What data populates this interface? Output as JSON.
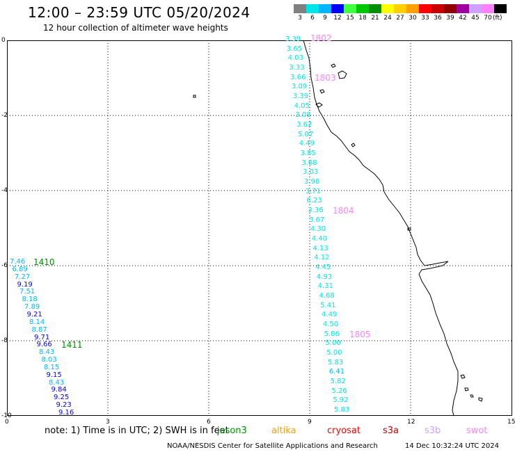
{
  "title": "12:00 – 23:59 UTC 05/20/2024",
  "subtitle": "12 hour collection of altimeter wave heights",
  "legend": {
    "unit": "(ft)",
    "bins": [
      {
        "label": "3",
        "color": "#808080"
      },
      {
        "label": "6",
        "color": "#00e5e5"
      },
      {
        "label": "9",
        "color": "#00b7ff"
      },
      {
        "label": "12",
        "color": "#0000ff"
      },
      {
        "label": "15",
        "color": "#40ff40"
      },
      {
        "label": "18",
        "color": "#00c800"
      },
      {
        "label": "21",
        "color": "#009000"
      },
      {
        "label": "24",
        "color": "#ffff00"
      },
      {
        "label": "27",
        "color": "#ffd000"
      },
      {
        "label": "30",
        "color": "#ffa000"
      },
      {
        "label": "33",
        "color": "#ff0000"
      },
      {
        "label": "36",
        "color": "#c80000"
      },
      {
        "label": "39",
        "color": "#900000"
      },
      {
        "label": "42",
        "color": "#a000a0"
      },
      {
        "label": "45",
        "color": "#d0a0ff"
      },
      {
        "label": "70",
        "color": "#ff80ff"
      },
      {
        "label": "",
        "color": "#000000"
      }
    ]
  },
  "axes": {
    "x_ticks": [
      "0",
      "3",
      "6",
      "9",
      "12",
      "15"
    ],
    "y_ticks": [
      "0",
      "-2",
      "-4",
      "-6",
      "-8",
      "-10"
    ]
  },
  "tracks": [
    {
      "label": "1410",
      "label_color": "#009000",
      "time_labels": [
        {
          "text": "1410",
          "color": "#009000"
        },
        {
          "text": "1411",
          "color": "#009000"
        }
      ],
      "values": [
        {
          "v": "7.46",
          "c": "#00b7ff"
        },
        {
          "v": "6.89",
          "c": "#00b7ff"
        },
        {
          "v": "7.27",
          "c": "#00b7ff"
        },
        {
          "v": "9.19",
          "c": "#0000ff"
        },
        {
          "v": "7.51",
          "c": "#00b7ff"
        },
        {
          "v": "8.18",
          "c": "#00b7ff"
        },
        {
          "v": "7.89",
          "c": "#00b7ff"
        },
        {
          "v": "9.21",
          "c": "#0000ff"
        },
        {
          "v": "8.14",
          "c": "#00b7ff"
        },
        {
          "v": "8.87",
          "c": "#00b7ff"
        },
        {
          "v": "9.71",
          "c": "#0000ff"
        },
        {
          "v": "9.66",
          "c": "#0000ff"
        },
        {
          "v": "8.43",
          "c": "#00b7ff"
        },
        {
          "v": "8.03",
          "c": "#00b7ff"
        },
        {
          "v": "8.15",
          "c": "#00b7ff"
        },
        {
          "v": "9.15",
          "c": "#0000ff"
        },
        {
          "v": "8.43",
          "c": "#00b7ff"
        },
        {
          "v": "9.84",
          "c": "#0000ff"
        },
        {
          "v": "9.25",
          "c": "#0000ff"
        },
        {
          "v": "9.23",
          "c": "#0000ff"
        },
        {
          "v": "9.16",
          "c": "#0000ff"
        }
      ]
    },
    {
      "time_labels": [
        {
          "text": "1802",
          "color": "#ff80ff"
        },
        {
          "text": "1803",
          "color": "#ff80ff"
        },
        {
          "text": "1804",
          "color": "#ff80ff"
        },
        {
          "text": "1805",
          "color": "#ff80ff"
        }
      ],
      "values": [
        {
          "v": "3.39",
          "c": "#00e5e5"
        },
        {
          "v": "3.65",
          "c": "#00e5e5"
        },
        {
          "v": "4.03",
          "c": "#00e5e5"
        },
        {
          "v": "3.33",
          "c": "#00e5e5"
        },
        {
          "v": "3.66",
          "c": "#00e5e5"
        },
        {
          "v": "3.09",
          "c": "#00e5e5"
        },
        {
          "v": "3.39",
          "c": "#00e5e5"
        },
        {
          "v": "4.05",
          "c": "#00e5e5"
        },
        {
          "v": "3.08",
          "c": "#00e5e5"
        },
        {
          "v": "3.62",
          "c": "#00e5e5"
        },
        {
          "v": "5.07",
          "c": "#00e5e5"
        },
        {
          "v": "4.49",
          "c": "#00e5e5"
        },
        {
          "v": "3.85",
          "c": "#00e5e5"
        },
        {
          "v": "3.68",
          "c": "#00e5e5"
        },
        {
          "v": "3.03",
          "c": "#00e5e5"
        },
        {
          "v": "3.98",
          "c": "#00e5e5"
        },
        {
          "v": "3.71",
          "c": "#00e5e5"
        },
        {
          "v": "6.23",
          "c": "#00e5e5"
        },
        {
          "v": "3.36",
          "c": "#00e5e5"
        },
        {
          "v": "3.67",
          "c": "#00e5e5"
        },
        {
          "v": "4.30",
          "c": "#00e5e5"
        },
        {
          "v": "4.40",
          "c": "#00e5e5"
        },
        {
          "v": "4.13",
          "c": "#00e5e5"
        },
        {
          "v": "4.12",
          "c": "#00e5e5"
        },
        {
          "v": "4.45",
          "c": "#00e5e5"
        },
        {
          "v": "4.93",
          "c": "#00e5e5"
        },
        {
          "v": "4.31",
          "c": "#00e5e5"
        },
        {
          "v": "4.68",
          "c": "#00e5e5"
        },
        {
          "v": "5.41",
          "c": "#00e5e5"
        },
        {
          "v": "4.49",
          "c": "#00e5e5"
        },
        {
          "v": "4.50",
          "c": "#00e5e5"
        },
        {
          "v": "5.86",
          "c": "#00e5e5"
        },
        {
          "v": "5.00",
          "c": "#00e5e5"
        },
        {
          "v": "5.00",
          "c": "#00e5e5"
        },
        {
          "v": "5.83",
          "c": "#00e5e5"
        },
        {
          "v": "6.41",
          "c": "#00b7ff"
        },
        {
          "v": "5.82",
          "c": "#00e5e5"
        },
        {
          "v": "5.26",
          "c": "#00e5e5"
        },
        {
          "v": "5.92",
          "c": "#00e5e5"
        },
        {
          "v": "5.83",
          "c": "#00e5e5"
        }
      ]
    }
  ],
  "note": {
    "prefix": "note:  1) Time is in UTC; 2) SWH is in feet",
    "satellites": [
      {
        "name": "jason3",
        "color": "#009000"
      },
      {
        "name": "altika",
        "color": "#ffa000"
      },
      {
        "name": "cryosat",
        "color": "#ff0000"
      },
      {
        "name": "s3a",
        "color": "#c80000"
      },
      {
        "name": "s3b",
        "color": "#d0a0ff"
      },
      {
        "name": "swot",
        "color": "#ff80ff"
      }
    ]
  },
  "footer": {
    "credit": "NOAA/NESDIS Center for Satellite Applications and Research",
    "timestamp": "14 Dec 10:32:24 UTC 2024"
  }
}
